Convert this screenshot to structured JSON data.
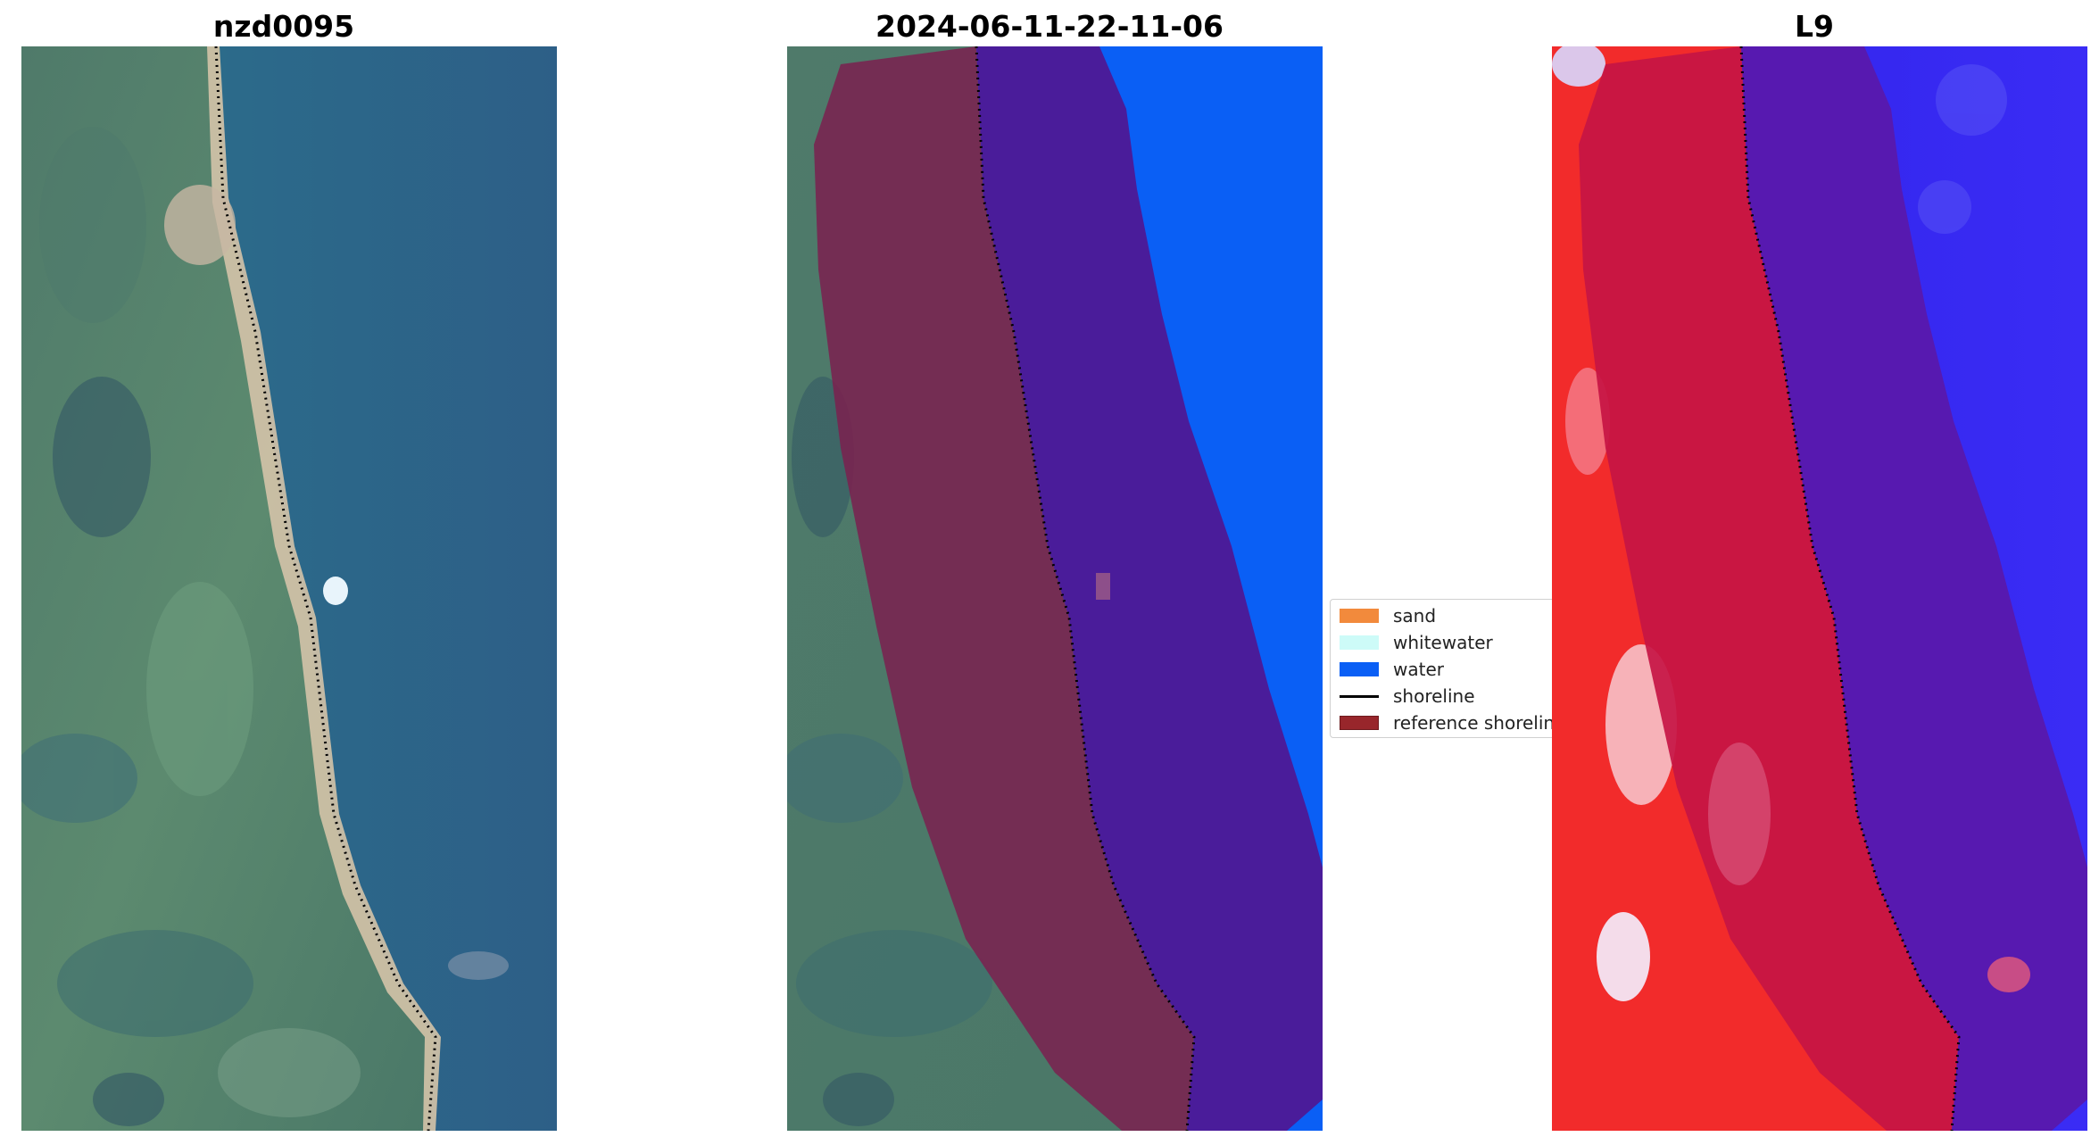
{
  "panels": [
    {
      "title": "nzd0095",
      "kind": "rgb"
    },
    {
      "title": "2024-06-11-22-11-06",
      "kind": "classified"
    },
    {
      "title": "L9",
      "kind": "index"
    }
  ],
  "legend": {
    "items": [
      {
        "label": "sand",
        "color": "#f28a3c",
        "type": "patch"
      },
      {
        "label": "whitewater",
        "color": "#cdfbf8",
        "type": "patch"
      },
      {
        "label": "water",
        "color": "#0a5ff5",
        "type": "patch"
      },
      {
        "label": "shoreline",
        "color": "#000000",
        "type": "line"
      },
      {
        "label": "reference shoreline buffer",
        "color": "#98262b",
        "type": "patch"
      }
    ]
  },
  "colors": {
    "rgb_land": "#56806d",
    "rgb_water": "#2f6487",
    "rgb_beach": "#d6c6ad",
    "buffer_overlay": "#7a2250",
    "buffer_water": "#4a1c9a",
    "water_class": "#0a5ff5",
    "index_land": "#f22b2b",
    "index_buffer_land": "#c51544",
    "index_water": "#3622f0",
    "index_buffer_water": "#5719b0"
  }
}
